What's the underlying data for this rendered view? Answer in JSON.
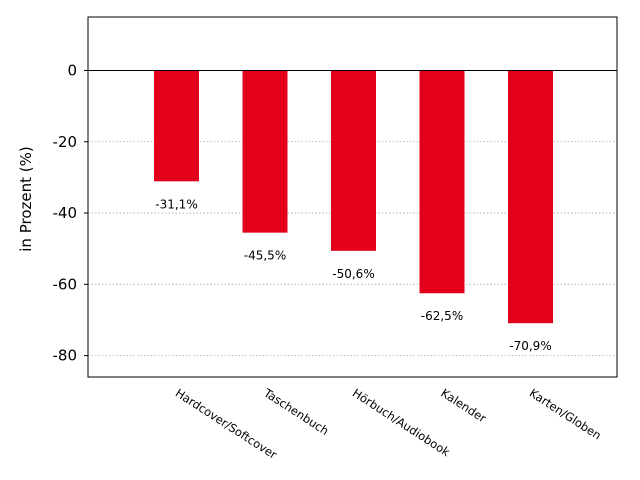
{
  "chart_data": {
    "type": "bar",
    "categories": [
      "Hardcover/Softcover",
      "Taschenbuch",
      "Hörbuch/Audiobook",
      "Kalender",
      "Karten/Globen"
    ],
    "values": [
      -31.1,
      -45.5,
      -50.6,
      -62.5,
      -70.9
    ],
    "data_labels": [
      "-31,1%",
      "-45,5%",
      "-50,6%",
      "-62,5%",
      "-70,9%"
    ],
    "ylabel": "in Prozent (%)",
    "ylim": [
      -86,
      15
    ],
    "yticks": [
      0,
      -20,
      -40,
      -60,
      -80
    ],
    "ytick_labels": [
      "0",
      "-20",
      "-40",
      "-60",
      "-80"
    ],
    "grid": "horizontal dotted",
    "bar_color": "#e2001a"
  }
}
